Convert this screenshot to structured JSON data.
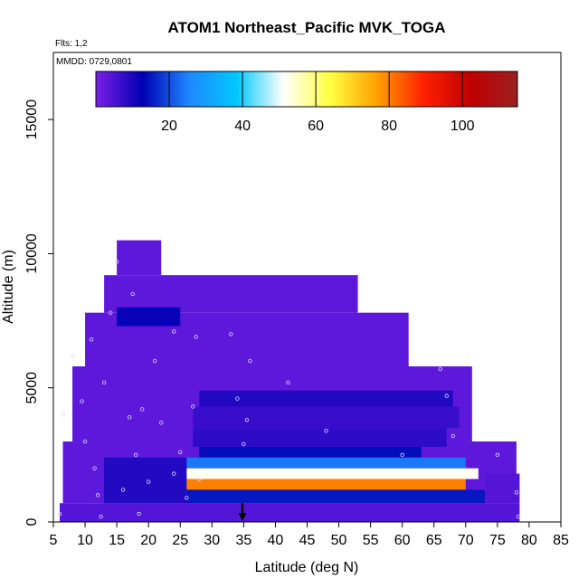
{
  "chart_data": {
    "type": "heatmap",
    "title": "ATOM1 Northeast_Pacific MVK_TOGA",
    "annotations": {
      "flights": "Flts: 1,2",
      "dates": "MMDD: 0729,0801"
    },
    "xlabel": "Latitude (deg N)",
    "ylabel": "Altitude (m)",
    "xlim": [
      5,
      85
    ],
    "ylim": [
      0,
      17500
    ],
    "x_ticks": [
      "5",
      "10",
      "15",
      "20",
      "25",
      "30",
      "35",
      "40",
      "45",
      "50",
      "55",
      "60",
      "65",
      "70",
      "75",
      "80",
      "85"
    ],
    "y_ticks": [
      "0",
      "5000",
      "10000",
      "15000"
    ],
    "y_tick_values": [
      0,
      5000,
      10000,
      15000
    ],
    "colorbar": {
      "range": [
        0,
        115
      ],
      "ticks": [
        "20",
        "40",
        "60",
        "80",
        "100"
      ],
      "tick_values": [
        20,
        40,
        60,
        80,
        100
      ],
      "colors": [
        "#7b1fe8",
        "#0000b4",
        "#1e88ff",
        "#00c8ff",
        "#ffffff",
        "#ffff40",
        "#ffa000",
        "#ff2000",
        "#c00000",
        "#9a2020"
      ]
    },
    "marker": {
      "label": "arrow",
      "latitude": 34.8
    },
    "cells": [
      {
        "x0": 6,
        "x1": 78.5,
        "y0": 0,
        "y1": 700,
        "v": 4
      },
      {
        "x0": 6.5,
        "x1": 78,
        "y0": 700,
        "y1": 3000,
        "v": 3
      },
      {
        "x0": 8,
        "x1": 71,
        "y0": 3000,
        "y1": 5800,
        "v": 3
      },
      {
        "x0": 10,
        "x1": 61,
        "y0": 5800,
        "y1": 7800,
        "v": 3
      },
      {
        "x0": 13,
        "x1": 53,
        "y0": 7800,
        "y1": 9200,
        "v": 3
      },
      {
        "x0": 15,
        "x1": 22,
        "y0": 9200,
        "y1": 10500,
        "v": 3
      },
      {
        "x0": 73,
        "x1": 78.5,
        "y0": 700,
        "y1": 1800,
        "v": 4
      },
      {
        "x0": 28,
        "x1": 68,
        "y0": 4300,
        "y1": 4900,
        "v": 9
      },
      {
        "x0": 27,
        "x1": 69,
        "y0": 3500,
        "y1": 4300,
        "v": 7
      },
      {
        "x0": 27,
        "x1": 67,
        "y0": 2800,
        "y1": 3500,
        "v": 8
      },
      {
        "x0": 28,
        "x1": 63,
        "y0": 2400,
        "y1": 2800,
        "v": 14
      },
      {
        "x0": 26,
        "x1": 70,
        "y0": 2000,
        "y1": 2400,
        "v": 24
      },
      {
        "x0": 26,
        "x1": 72,
        "y0": 1600,
        "y1": 2000,
        "v": 52
      },
      {
        "x0": 26,
        "x1": 70,
        "y0": 1200,
        "y1": 1600,
        "v": 80
      },
      {
        "x0": 26,
        "x1": 73,
        "y0": 700,
        "y1": 1200,
        "v": 15
      },
      {
        "x0": 13,
        "x1": 26,
        "y0": 700,
        "y1": 2400,
        "v": 9
      },
      {
        "x0": 15,
        "x1": 25,
        "y0": 7300,
        "y1": 8000,
        "v": 12
      }
    ]
  }
}
